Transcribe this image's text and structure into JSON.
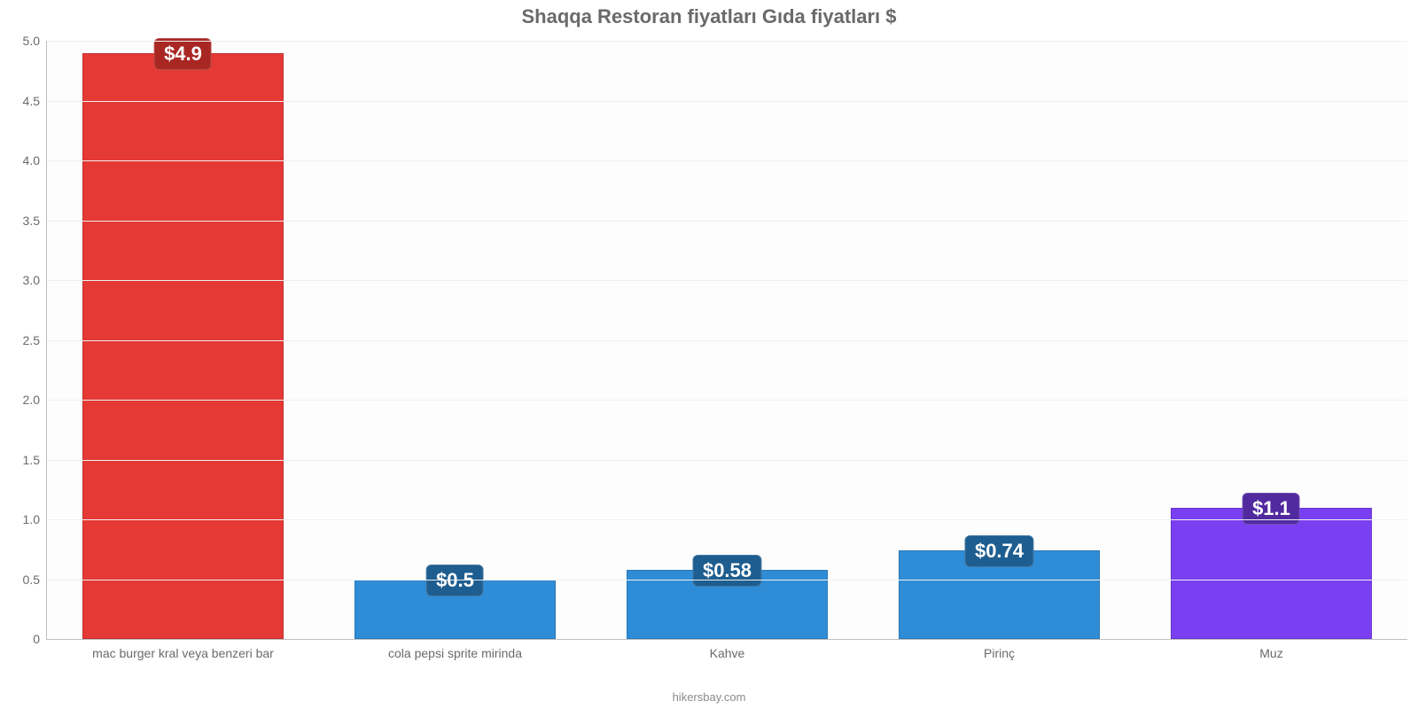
{
  "chart": {
    "type": "bar",
    "title": "Shaqqa Restoran fiyatları Gıda fiyatları $",
    "title_fontsize": 22,
    "title_color": "#6a6a6a",
    "background_color": "#ffffff",
    "plot_background_color": "#fdfdfd",
    "grid_color": "#f0f0f0",
    "axis_color": "#bfbfbf",
    "label_color": "#6a6a6a",
    "attribution": "hikersbay.com",
    "attribution_fontsize": 13,
    "tick_fontsize": 14,
    "xlabel_fontsize": 14,
    "value_label_fontsize": 22,
    "ylim": [
      0,
      5.0
    ],
    "ytick_step": 0.5,
    "yticks": [
      "0",
      "0.5",
      "1.0",
      "1.5",
      "2.0",
      "2.5",
      "3.0",
      "3.5",
      "4.0",
      "4.5",
      "5.0"
    ],
    "bar_width_pct": 74,
    "categories": [
      "mac burger kral veya benzeri bar",
      "cola pepsi sprite mirinda",
      "Kahve",
      "Pirinç",
      "Muz"
    ],
    "values": [
      4.9,
      0.5,
      0.58,
      0.74,
      1.1
    ],
    "value_labels": [
      "$4.9",
      "$0.5",
      "$0.58",
      "$0.74",
      "$1.1"
    ],
    "bar_colors": [
      "#e53935",
      "#2f8cd6",
      "#2f8cd6",
      "#2f8cd6",
      "#7b3ff2"
    ],
    "badge_colors": [
      "#a92723",
      "#1e5d8f",
      "#1e5d8f",
      "#1e5d8f",
      "#512aa0"
    ],
    "value_label_text_color": "#ffffff"
  }
}
